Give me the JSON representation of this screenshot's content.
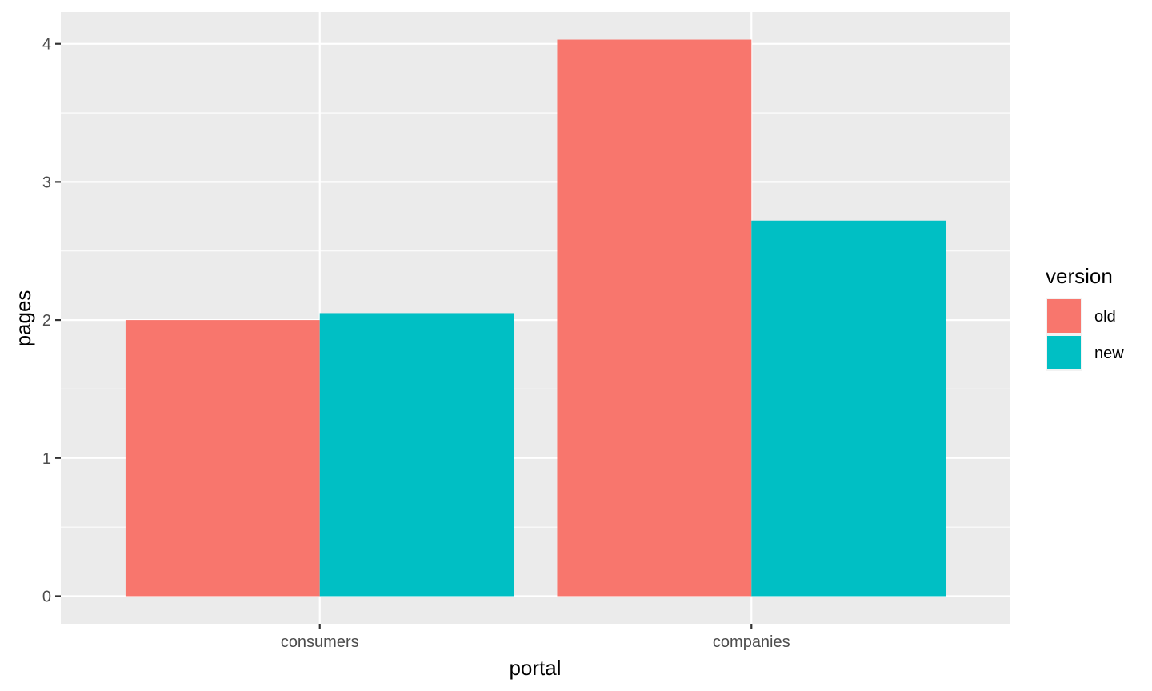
{
  "chart_data": {
    "type": "bar",
    "categories": [
      "consumers",
      "companies"
    ],
    "series": [
      {
        "name": "old",
        "values": [
          2.0,
          4.03
        ],
        "color": "#F8766D"
      },
      {
        "name": "new",
        "values": [
          2.05,
          2.72
        ],
        "color": "#00BFC4"
      }
    ],
    "xlabel": "portal",
    "ylabel": "pages",
    "ylim": [
      -0.2,
      4.23
    ],
    "yticks": [
      0,
      1,
      2,
      3,
      4
    ],
    "grid": true,
    "legend": {
      "title": "version",
      "position": "right"
    },
    "panel_background": "#EBEBEB",
    "grid_color": "#FFFFFF"
  }
}
